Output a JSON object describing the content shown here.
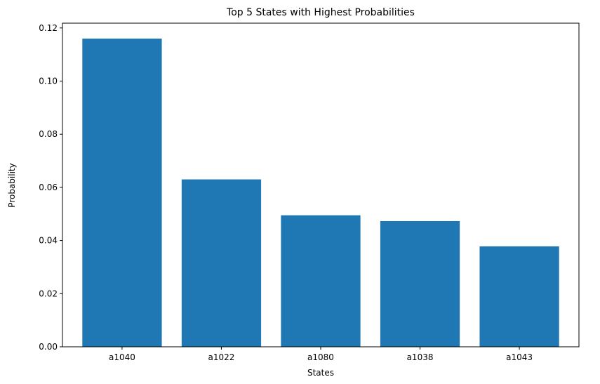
{
  "chart_data": {
    "type": "bar",
    "title": "Top 5 States with Highest Probabilities",
    "xlabel": "States",
    "ylabel": "Probability",
    "categories": [
      "a1040",
      "a1022",
      "a1080",
      "a1038",
      "a1043"
    ],
    "values": [
      0.116,
      0.063,
      0.0495,
      0.0473,
      0.0378
    ],
    "ylim": [
      0,
      0.1218
    ],
    "yticks": [
      0.0,
      0.02,
      0.04,
      0.06,
      0.08,
      0.1,
      0.12
    ],
    "ytick_labels": [
      "0.00",
      "0.02",
      "0.04",
      "0.06",
      "0.08",
      "0.10",
      "0.12"
    ],
    "grid": false,
    "colors": {
      "bar": "#1f77b4"
    }
  }
}
